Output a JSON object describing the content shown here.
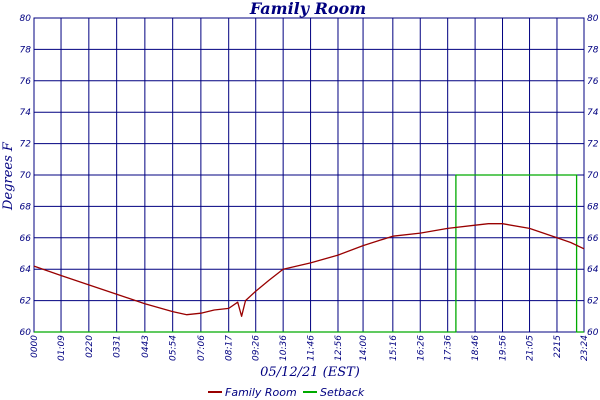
{
  "chart_data": {
    "type": "line",
    "title": "Family Room",
    "xlabel": "05/12/21 (EST)",
    "ylabel": "Degrees F",
    "ylim": [
      60,
      80
    ],
    "y_ticks": [
      60,
      62,
      64,
      66,
      68,
      70,
      72,
      74,
      76,
      78,
      80
    ],
    "x_ticks": [
      "0000",
      "01:09",
      "02:20",
      "03:31",
      "04:43",
      "05:54",
      "07:06",
      "08:17",
      "09:26",
      "10:36",
      "11:46",
      "12:56",
      "14:00",
      "15:16",
      "16:26",
      "17:36",
      "18:46",
      "19:56",
      "21:05",
      "22:15",
      "23:24"
    ],
    "x_tick_display": [
      "0000",
      "01:09",
      "0220",
      "0331",
      "0443",
      "05:54",
      "07:06",
      "08:17",
      "09:26",
      "10:36",
      "11:46",
      "12:56",
      "14:00",
      "15:16",
      "16:26",
      "17:36",
      "18:46",
      "19:56",
      "21:05",
      "2215",
      "23:24"
    ],
    "grid": true,
    "legend_position": "bottom",
    "colors": {
      "grid": "#000080",
      "family_room": "#990000",
      "setback": "#00aa00"
    },
    "series": [
      {
        "name": "Family Room",
        "x": [
          "0000",
          "01:09",
          "02:20",
          "03:31",
          "04:43",
          "05:54",
          "06:30",
          "07:06",
          "07:40",
          "08:17",
          "08:40",
          "08:50",
          "09:00",
          "09:26",
          "10:00",
          "10:36",
          "11:46",
          "12:56",
          "14:00",
          "15:16",
          "16:26",
          "17:36",
          "18:46",
          "19:20",
          "19:56",
          "21:05",
          "22:15",
          "22:50",
          "23:24"
        ],
        "values": [
          64.2,
          63.6,
          63.0,
          62.4,
          61.8,
          61.3,
          61.1,
          61.2,
          61.4,
          61.5,
          61.9,
          61.0,
          62.0,
          62.6,
          63.3,
          64.0,
          64.4,
          64.9,
          65.5,
          66.1,
          66.3,
          66.6,
          66.8,
          66.9,
          66.9,
          66.6,
          66.0,
          65.7,
          65.3
        ]
      },
      {
        "name": "Setback",
        "x": [
          "0000",
          "17:36",
          "17:57",
          "17:57",
          "23:05",
          "23:05",
          "23:24"
        ],
        "values": [
          60,
          60,
          60,
          70,
          70,
          60,
          60
        ]
      }
    ]
  }
}
